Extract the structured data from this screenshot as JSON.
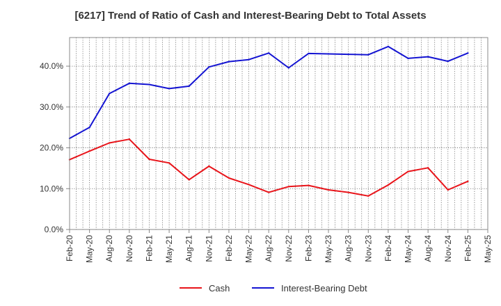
{
  "chart_data": {
    "type": "line",
    "title": "[6217]  Trend of Ratio of Cash and Interest-Bearing Debt to Total Assets",
    "xlabel": "",
    "ylabel": "",
    "ylim": [
      0,
      47
    ],
    "y_ticks": [
      0,
      10,
      20,
      30,
      40
    ],
    "y_tick_labels": [
      "0.0%",
      "10.0%",
      "20.0%",
      "30.0%",
      "40.0%"
    ],
    "x_tick_labels": [
      "Feb-20",
      "May-20",
      "Aug-20",
      "Nov-20",
      "Feb-21",
      "May-21",
      "Aug-21",
      "Nov-21",
      "Feb-22",
      "May-22",
      "Aug-22",
      "Nov-22",
      "Feb-23",
      "May-23",
      "Aug-23",
      "Nov-23",
      "Feb-24",
      "May-24",
      "Aug-24",
      "Nov-24",
      "Feb-25",
      "May-25"
    ],
    "grid": true,
    "legend_position": "bottom",
    "categories": [
      "Feb-20",
      "May-20",
      "Aug-20",
      "Nov-20",
      "Feb-21",
      "May-21",
      "Aug-21",
      "Nov-21",
      "Feb-22",
      "May-22",
      "Aug-22",
      "Nov-22",
      "Feb-23",
      "May-23",
      "Aug-23",
      "Nov-23",
      "Feb-24",
      "May-24",
      "Aug-24",
      "Nov-24",
      "Feb-25"
    ],
    "series": [
      {
        "name": "Cash",
        "color": "#e8141a",
        "values": [
          17.1,
          19.2,
          21.2,
          22.1,
          17.2,
          16.3,
          12.2,
          15.5,
          12.6,
          11.0,
          9.1,
          10.5,
          10.8,
          9.7,
          9.1,
          8.2,
          10.9,
          14.2,
          15.1,
          9.7,
          11.8
        ]
      },
      {
        "name": "Interest-Bearing Debt",
        "color": "#1414d2",
        "values": [
          22.3,
          25.0,
          33.3,
          35.8,
          35.5,
          34.5,
          35.1,
          39.8,
          41.1,
          41.6,
          43.2,
          39.6,
          43.1,
          43.0,
          42.9,
          42.8,
          44.8,
          41.9,
          42.3,
          41.2,
          43.2
        ]
      }
    ]
  }
}
